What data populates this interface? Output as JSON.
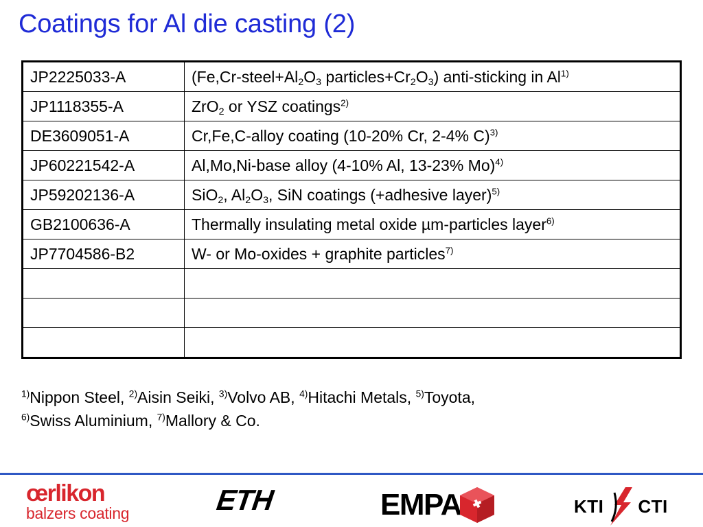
{
  "title": "Coatings for Al die casting (2)",
  "table": {
    "rows": [
      {
        "patent": "JP2225033-A",
        "description": {
          "t1": "(Fe,Cr-steel+Al",
          "s1": "2",
          "t2": "O",
          "s2": "3",
          "t3": " particles+Cr",
          "s3": "2",
          "t4": "O",
          "s4": "3",
          "t5": ") anti-sticking in Al",
          "ref": "1)"
        }
      },
      {
        "patent": "JP1118355-A",
        "description": {
          "t1": "ZrO",
          "s1": "2",
          "t2": " or YSZ coatings",
          "ref": "2)"
        }
      },
      {
        "patent": "DE3609051-A",
        "description": {
          "t1": "Cr,Fe,C-alloy coating (10-20% Cr, 2-4% C)",
          "ref": "3)"
        }
      },
      {
        "patent": "JP60221542-A",
        "description": {
          "t1": "Al,Mo,Ni-base alloy (4-10% Al, 13-23% Mo)",
          "ref": "4)"
        }
      },
      {
        "patent": "JP59202136-A",
        "description": {
          "t1": "SiO",
          "s1": "2",
          "t2": ", Al",
          "s2": "2",
          "t3": "O",
          "s3": "3",
          "t4": ", SiN coatings (+adhesive layer)",
          "ref": "5)"
        }
      },
      {
        "patent": "GB2100636-A",
        "description": {
          "t1": "Thermally insulating metal oxide µm-particles layer",
          "ref": "6)"
        }
      },
      {
        "patent": "JP7704586-B2",
        "description": {
          "t1": "W- or Mo-oxides + graphite particles",
          "ref": "7)"
        }
      },
      {
        "patent": "",
        "description": {
          "t1": ""
        }
      },
      {
        "patent": "",
        "description": {
          "t1": ""
        }
      },
      {
        "patent": "",
        "description": {
          "t1": ""
        }
      }
    ]
  },
  "footnotes": [
    {
      "ref": "1)",
      "text": "Nippon Steel, "
    },
    {
      "ref": "2)",
      "text": "Aisin Seiki, "
    },
    {
      "ref": "3)",
      "text": "Volvo AB, "
    },
    {
      "ref": "4)",
      "text": "Hitachi Metals, "
    },
    {
      "ref": "5)",
      "text": "Toyota,"
    },
    {
      "ref": "6)",
      "text": "Swiss Aluminium, "
    },
    {
      "ref": "7)",
      "text": "Mallory & Co."
    }
  ],
  "logos": {
    "oerlikon_name": "œrlikon",
    "oerlikon_sub": "balzers coating",
    "eth": "ETH",
    "empa": "EMPA",
    "kti_left": "KTI",
    "kti_right": "CTI"
  },
  "colors": {
    "title": "#1f2bd6",
    "rule": "#2f58c4",
    "oerlikon": "#d8262d",
    "empa_cube": "#d8262d"
  }
}
